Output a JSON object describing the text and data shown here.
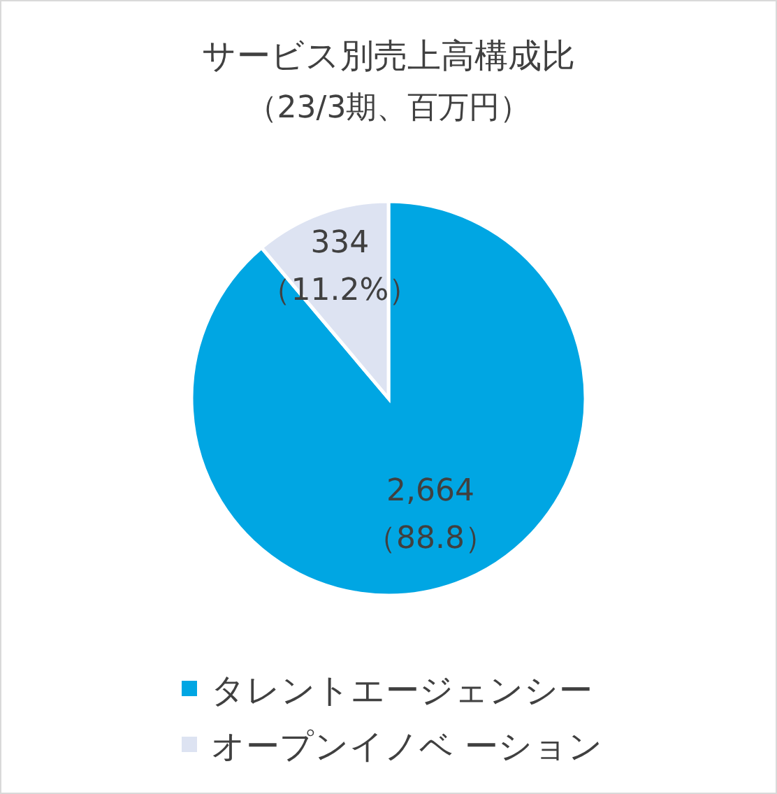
{
  "chart_data": {
    "type": "pie",
    "title": "サービス別売上高構成比",
    "subtitle": "（23/3期、百万円）",
    "categories": [
      "タレントエージェンシー",
      "オープンイノベ ーション"
    ],
    "values": [
      2664,
      334
    ],
    "colors": [
      "#00a6e3",
      "#dde3f2"
    ],
    "value_labels": [
      "2,664\n（88.8）",
      "334\n（11.2%）"
    ],
    "legend": "bottom"
  }
}
